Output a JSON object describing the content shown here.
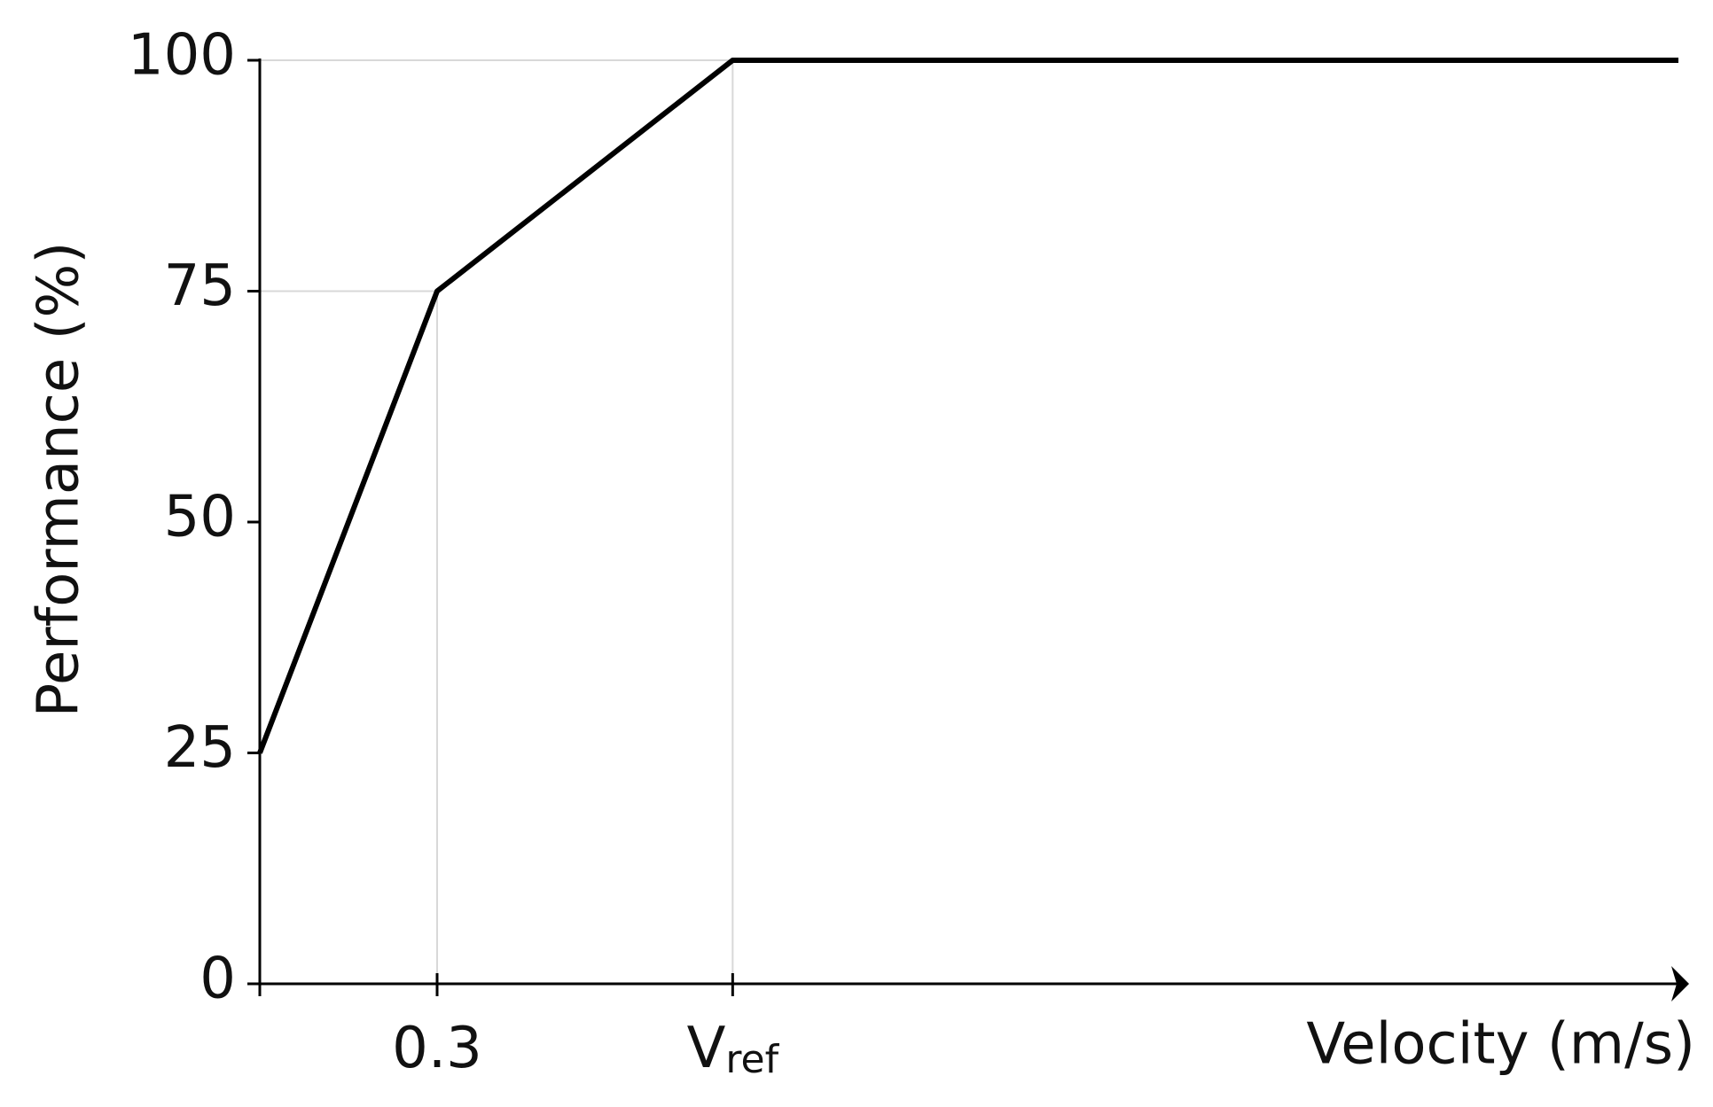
{
  "chart_data": {
    "type": "line",
    "x_label": "Velocity (m/s)",
    "y_label": "Performance (%)",
    "x": [
      0,
      0.3,
      0.8,
      2.4
    ],
    "series": [
      {
        "name": "Performance",
        "color": "#000000",
        "values": [
          25,
          75,
          100,
          100
        ]
      }
    ],
    "xlim": [
      0,
      2.4
    ],
    "ylim": [
      0,
      100
    ],
    "xticks": [
      {
        "value": 0.3,
        "label": "0.3"
      },
      {
        "value": 0.8,
        "label": "V",
        "label_sub": "ref"
      }
    ],
    "yticks": [
      0,
      25,
      50,
      75,
      100
    ],
    "drop_lines": true
  }
}
